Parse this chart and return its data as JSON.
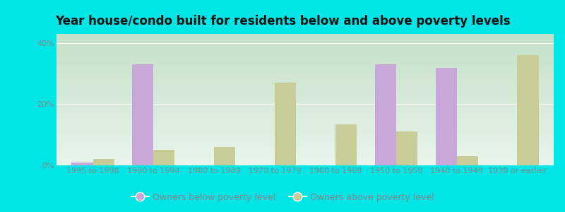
{
  "categories": [
    "1995 to 1998",
    "1990 to 1994",
    "1980 to 1989",
    "1970 to 1979",
    "1960 to 1969",
    "1950 to 1959",
    "1940 to 1949",
    "1939 or earlier"
  ],
  "below_poverty": [
    1.0,
    33.0,
    0.0,
    0.0,
    0.0,
    33.0,
    32.0,
    0.0
  ],
  "above_poverty": [
    2.0,
    5.0,
    6.0,
    27.0,
    13.5,
    11.0,
    3.0,
    36.0
  ],
  "below_color": "#c8a8d8",
  "above_color": "#c8cc96",
  "title": "Year house/condo built for residents below and above poverty levels",
  "ytick_vals": [
    0,
    20,
    40
  ],
  "ytick_labels": [
    "0%",
    "20%",
    "40%"
  ],
  "ylim": [
    0,
    43
  ],
  "legend_below": "Owners below poverty level",
  "legend_above": "Owners above poverty level",
  "plot_bg_top": "#d0edd8",
  "plot_bg_bottom": "#e8f5ec",
  "outer_background": "#00e5e5",
  "title_fontsize": 12,
  "tick_fontsize": 8,
  "legend_fontsize": 9,
  "bar_width": 0.35,
  "grid_color": "#ffffff",
  "tick_color": "#888888"
}
